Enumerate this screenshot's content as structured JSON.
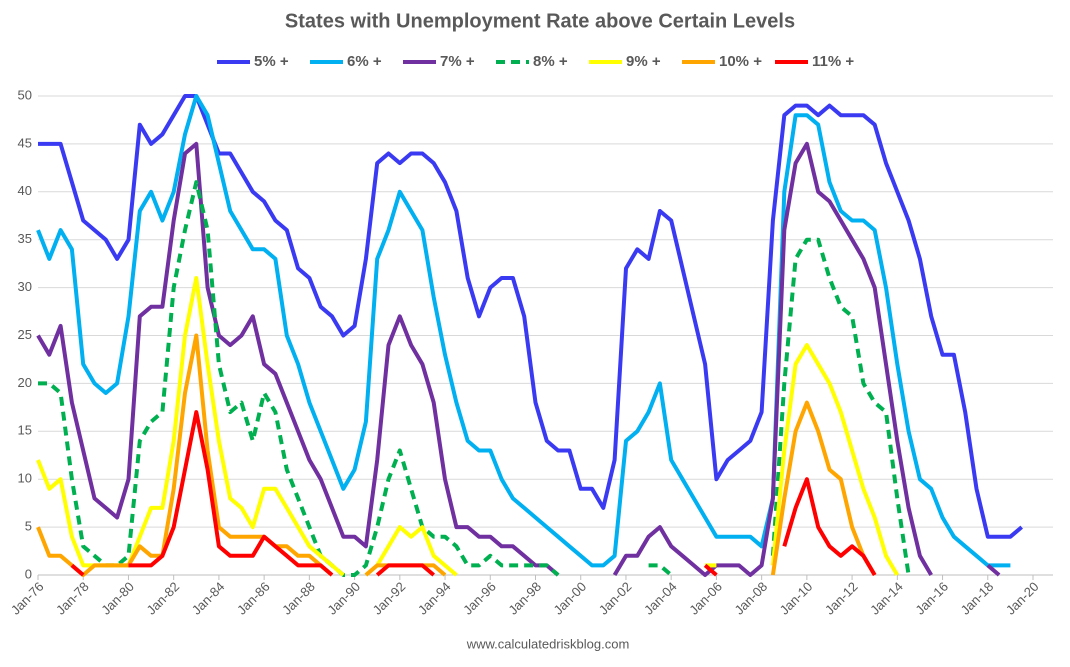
{
  "chart_data": {
    "type": "line",
    "title": "States with Unemployment Rate above Certain Levels",
    "source": "www.calculatedriskblog.com",
    "x": [
      1976,
      1976.5,
      1977,
      1977.5,
      1978,
      1978.5,
      1979,
      1979.5,
      1980,
      1980.5,
      1981,
      1981.5,
      1982,
      1982.5,
      1983,
      1983.5,
      1984,
      1984.5,
      1985,
      1985.5,
      1986,
      1986.5,
      1987,
      1987.5,
      1988,
      1988.5,
      1989,
      1989.5,
      1990,
      1990.5,
      1991,
      1991.5,
      1992,
      1992.5,
      1993,
      1993.5,
      1994,
      1994.5,
      1995,
      1995.5,
      1996,
      1996.5,
      1997,
      1997.5,
      1998,
      1998.5,
      1999,
      1999.5,
      2000,
      2000.5,
      2001,
      2001.5,
      2002,
      2002.5,
      2003,
      2003.5,
      2004,
      2004.5,
      2005,
      2005.5,
      2006,
      2006.5,
      2007,
      2007.5,
      2008,
      2008.5,
      2009,
      2009.5,
      2010,
      2010.5,
      2011,
      2011.5,
      2012,
      2012.5,
      2013,
      2013.5,
      2014,
      2014.5,
      2015,
      2015.5,
      2016,
      2016.5,
      2017,
      2017.5,
      2018,
      2018.5,
      2019,
      2019.5
    ],
    "series": [
      {
        "name": "5% +",
        "color": "#3a3af2",
        "style": "solid",
        "values": [
          45,
          45,
          45,
          41,
          37,
          36,
          35,
          33,
          35,
          47,
          45,
          46,
          48,
          50,
          50,
          47,
          44,
          44,
          42,
          40,
          39,
          37,
          36,
          32,
          31,
          28,
          27,
          25,
          26,
          33,
          43,
          44,
          43,
          44,
          44,
          43,
          41,
          38,
          31,
          27,
          30,
          31,
          31,
          27,
          18,
          14,
          13,
          13,
          9,
          9,
          7,
          12,
          32,
          34,
          33,
          38,
          37,
          32,
          27,
          22,
          10,
          12,
          13,
          14,
          17,
          37,
          48,
          49,
          49,
          48,
          49,
          48,
          48,
          48,
          47,
          43,
          40,
          37,
          33,
          27,
          23,
          23,
          17,
          9,
          4,
          4,
          4,
          5
        ]
      },
      {
        "name": "6% +",
        "color": "#00b0f0",
        "style": "solid",
        "values": [
          36,
          33,
          36,
          34,
          22,
          20,
          19,
          20,
          27,
          38,
          40,
          37,
          40,
          46,
          50,
          48,
          43,
          38,
          36,
          34,
          34,
          33,
          25,
          22,
          18,
          15,
          12,
          9,
          11,
          16,
          33,
          36,
          40,
          38,
          36,
          29,
          23,
          18,
          14,
          13,
          13,
          10,
          8,
          7,
          6,
          5,
          4,
          3,
          2,
          1,
          1,
          2,
          14,
          15,
          17,
          20,
          12,
          10,
          8,
          6,
          4,
          4,
          4,
          4,
          3,
          8,
          40,
          48,
          48,
          47,
          41,
          38,
          37,
          37,
          36,
          30,
          22,
          15,
          10,
          9,
          6,
          4,
          3,
          2,
          1,
          1,
          1,
          null
        ]
      },
      {
        "name": "7% +",
        "color": "#7030a0",
        "style": "solid",
        "values": [
          25,
          23,
          26,
          18,
          13,
          8,
          7,
          6,
          10,
          27,
          28,
          28,
          37,
          44,
          45,
          30,
          25,
          24,
          25,
          27,
          22,
          21,
          18,
          15,
          12,
          10,
          7,
          4,
          4,
          3,
          12,
          24,
          27,
          24,
          22,
          18,
          10,
          5,
          5,
          4,
          4,
          3,
          3,
          2,
          1,
          1,
          0,
          null,
          null,
          null,
          null,
          0,
          2,
          2,
          4,
          5,
          3,
          2,
          1,
          0,
          1,
          1,
          1,
          0,
          1,
          8,
          36,
          43,
          45,
          40,
          39,
          37,
          35,
          33,
          30,
          22,
          14,
          7,
          2,
          0,
          null,
          null,
          null,
          null,
          1,
          0,
          null,
          null
        ]
      },
      {
        "name": "8% +",
        "color": "#00b050",
        "style": "dashed",
        "values": [
          20,
          20,
          19,
          10,
          3,
          2,
          1,
          1,
          2,
          14,
          16,
          17,
          30,
          36,
          41,
          36,
          22,
          17,
          18,
          14,
          19,
          17,
          11,
          8,
          5,
          2,
          1,
          0,
          0,
          1,
          5,
          10,
          13,
          9,
          5,
          4,
          4,
          3,
          1,
          1,
          2,
          1,
          1,
          1,
          1,
          1,
          0,
          null,
          null,
          null,
          null,
          null,
          null,
          null,
          1,
          1,
          0,
          null,
          null,
          null,
          null,
          null,
          null,
          null,
          null,
          2,
          20,
          33,
          35,
          35,
          31,
          28,
          27,
          20,
          18,
          17,
          8,
          0,
          null,
          null,
          null,
          null,
          null,
          null,
          null,
          null,
          null,
          null
        ]
      },
      {
        "name": "9% +",
        "color": "#ffff00",
        "style": "solid",
        "values": [
          12,
          9,
          10,
          4,
          1,
          1,
          1,
          1,
          1,
          4,
          7,
          7,
          14,
          25,
          31,
          22,
          14,
          8,
          7,
          5,
          9,
          9,
          7,
          5,
          3,
          2,
          1,
          0,
          null,
          0,
          1,
          3,
          5,
          4,
          5,
          2,
          1,
          0,
          null,
          null,
          null,
          null,
          null,
          null,
          null,
          null,
          null,
          null,
          null,
          null,
          null,
          null,
          null,
          null,
          null,
          null,
          null,
          null,
          null,
          1,
          1,
          null,
          null,
          null,
          null,
          1,
          13,
          22,
          24,
          22,
          20,
          17,
          13,
          9,
          6,
          2,
          0,
          null,
          null,
          null,
          null,
          null,
          null,
          null,
          null,
          null,
          null,
          null
        ]
      },
      {
        "name": "10% +",
        "color": "#ffa500",
        "style": "solid",
        "values": [
          5,
          2,
          2,
          1,
          0,
          1,
          1,
          1,
          1,
          3,
          2,
          2,
          9,
          19,
          25,
          13,
          5,
          4,
          4,
          4,
          4,
          3,
          3,
          2,
          2,
          1,
          0,
          null,
          null,
          0,
          1,
          1,
          1,
          1,
          1,
          1,
          0,
          null,
          null,
          null,
          null,
          null,
          null,
          null,
          null,
          null,
          null,
          null,
          null,
          null,
          null,
          null,
          null,
          null,
          null,
          null,
          null,
          null,
          null,
          1,
          null,
          null,
          null,
          null,
          null,
          0,
          8,
          15,
          18,
          15,
          11,
          10,
          5,
          2,
          0,
          null,
          null,
          null,
          null,
          null,
          null,
          null,
          null,
          null,
          null,
          null,
          null,
          null
        ]
      },
      {
        "name": "11% +",
        "color": "#ff0000",
        "style": "solid",
        "values": [
          null,
          null,
          null,
          1,
          0,
          null,
          null,
          null,
          1,
          1,
          1,
          2,
          5,
          11,
          17,
          11,
          3,
          2,
          2,
          2,
          4,
          3,
          2,
          1,
          1,
          1,
          0,
          null,
          null,
          null,
          0,
          1,
          1,
          1,
          1,
          0,
          null,
          null,
          null,
          null,
          null,
          null,
          null,
          null,
          null,
          null,
          null,
          null,
          null,
          null,
          null,
          null,
          null,
          null,
          null,
          null,
          null,
          null,
          null,
          1,
          0,
          null,
          null,
          null,
          null,
          null,
          3,
          7,
          10,
          5,
          3,
          2,
          3,
          2,
          0,
          null,
          null,
          null,
          null,
          null,
          null,
          null,
          null,
          null,
          null,
          null,
          null,
          null
        ]
      }
    ],
    "xlim": [
      1976,
      2020
    ],
    "xticks": [
      {
        "value": 1976,
        "label": "Jan-76"
      },
      {
        "value": 1978,
        "label": "Jan-78"
      },
      {
        "value": 1980,
        "label": "Jan-80"
      },
      {
        "value": 1982,
        "label": "Jan-82"
      },
      {
        "value": 1984,
        "label": "Jan-84"
      },
      {
        "value": 1986,
        "label": "Jan-86"
      },
      {
        "value": 1988,
        "label": "Jan-88"
      },
      {
        "value": 1990,
        "label": "Jan-90"
      },
      {
        "value": 1992,
        "label": "Jan-92"
      },
      {
        "value": 1994,
        "label": "Jan-94"
      },
      {
        "value": 1996,
        "label": "Jan-96"
      },
      {
        "value": 1998,
        "label": "Jan-98"
      },
      {
        "value": 2000,
        "label": "Jan-00"
      },
      {
        "value": 2002,
        "label": "Jan-02"
      },
      {
        "value": 2004,
        "label": "Jan-04"
      },
      {
        "value": 2006,
        "label": "Jan-06"
      },
      {
        "value": 2008,
        "label": "Jan-08"
      },
      {
        "value": 2010,
        "label": "Jan-10"
      },
      {
        "value": 2012,
        "label": "Jan-12"
      },
      {
        "value": 2014,
        "label": "Jan-14"
      },
      {
        "value": 2016,
        "label": "Jan-16"
      },
      {
        "value": 2018,
        "label": "Jan-18"
      },
      {
        "value": 2020,
        "label": "Jan-20"
      }
    ],
    "ylim": [
      0,
      50
    ],
    "yticks": [
      0,
      5,
      10,
      15,
      20,
      25,
      30,
      35,
      40,
      45,
      50
    ],
    "grid": true
  }
}
